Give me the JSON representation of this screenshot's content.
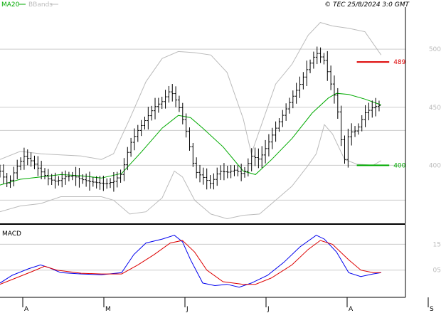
{
  "header": {
    "ma_label": "MA20",
    "bb_label": "BBands",
    "source": "© TEC 25/8/2024 3:0 GMT"
  },
  "colors": {
    "ma": "#00aa00",
    "bands": "#bbbbbb",
    "price": "#000000",
    "macd": "#0000ee",
    "signal": "#dd0000",
    "grid": "#cccccc",
    "resistance": "#dd0000",
    "support": "#00aa00"
  },
  "chart_data": [
    {
      "type": "ohlc",
      "y_ticks": [
        "500",
        "450",
        "400"
      ],
      "y_tick_values": [
        500,
        450,
        400
      ],
      "ylim": [
        350,
        535
      ],
      "x_tick_labels": [
        "A",
        "M",
        "J",
        "J",
        "A",
        "S"
      ],
      "x_tick_positions": [
        0,
        20,
        40,
        60,
        80,
        100
      ],
      "xlim": [
        0,
        100
      ],
      "grid": true,
      "levels": [
        {
          "name": "resistance",
          "label": "489",
          "value": 489,
          "x_start": 88,
          "x_end": 96
        },
        {
          "name": "support",
          "label": "400",
          "value": 400,
          "x_start": 88,
          "x_end": 96
        }
      ],
      "price_close": [
        [
          0,
          395
        ],
        [
          2,
          383
        ],
        [
          4,
          398
        ],
        [
          6,
          408
        ],
        [
          8,
          403
        ],
        [
          10,
          395
        ],
        [
          12,
          388
        ],
        [
          14,
          386
        ],
        [
          16,
          390
        ],
        [
          18,
          391
        ],
        [
          20,
          388
        ],
        [
          22,
          386
        ],
        [
          24,
          385
        ],
        [
          26,
          384
        ],
        [
          28,
          386
        ],
        [
          30,
          393
        ],
        [
          32,
          418
        ],
        [
          34,
          430
        ],
        [
          36,
          440
        ],
        [
          38,
          450
        ],
        [
          40,
          455
        ],
        [
          42,
          465
        ],
        [
          44,
          452
        ],
        [
          46,
          428
        ],
        [
          47,
          412
        ],
        [
          48,
          395
        ],
        [
          50,
          390
        ],
        [
          52,
          384
        ],
        [
          54,
          395
        ],
        [
          56,
          394
        ],
        [
          58,
          396
        ],
        [
          60,
          392
        ],
        [
          62,
          408
        ],
        [
          64,
          405
        ],
        [
          66,
          418
        ],
        [
          68,
          432
        ],
        [
          70,
          445
        ],
        [
          72,
          458
        ],
        [
          74,
          470
        ],
        [
          76,
          485
        ],
        [
          78,
          497
        ],
        [
          80,
          490
        ],
        [
          82,
          465
        ],
        [
          83,
          455
        ],
        [
          84,
          425
        ],
        [
          85,
          405
        ],
        [
          86,
          428
        ],
        [
          88,
          430
        ],
        [
          90,
          445
        ],
        [
          92,
          450
        ],
        [
          94,
          452
        ]
      ],
      "ma20": [
        [
          0,
          383
        ],
        [
          5,
          388
        ],
        [
          10,
          390
        ],
        [
          15,
          392
        ],
        [
          20,
          391
        ],
        [
          25,
          389
        ],
        [
          30,
          393
        ],
        [
          35,
          412
        ],
        [
          40,
          432
        ],
        [
          44,
          443
        ],
        [
          47,
          441
        ],
        [
          50,
          432
        ],
        [
          55,
          416
        ],
        [
          60,
          395
        ],
        [
          63,
          392
        ],
        [
          67,
          405
        ],
        [
          72,
          423
        ],
        [
          77,
          445
        ],
        [
          81,
          458
        ],
        [
          83,
          462
        ],
        [
          86,
          461
        ],
        [
          90,
          457
        ],
        [
          94,
          452
        ]
      ],
      "bb_upper": [
        [
          0,
          405
        ],
        [
          5,
          412
        ],
        [
          10,
          410
        ],
        [
          15,
          409
        ],
        [
          20,
          408
        ],
        [
          25,
          405
        ],
        [
          28,
          410
        ],
        [
          32,
          440
        ],
        [
          36,
          472
        ],
        [
          40,
          492
        ],
        [
          44,
          498
        ],
        [
          48,
          497
        ],
        [
          52,
          495
        ],
        [
          56,
          480
        ],
        [
          60,
          440
        ],
        [
          62,
          410
        ],
        [
          65,
          440
        ],
        [
          68,
          470
        ],
        [
          72,
          487
        ],
        [
          76,
          512
        ],
        [
          79,
          523
        ],
        [
          82,
          520
        ],
        [
          86,
          518
        ],
        [
          90,
          515
        ],
        [
          94,
          495
        ]
      ],
      "bb_lower": [
        [
          0,
          360
        ],
        [
          5,
          365
        ],
        [
          10,
          367
        ],
        [
          15,
          373
        ],
        [
          20,
          373
        ],
        [
          25,
          373
        ],
        [
          28,
          370
        ],
        [
          32,
          358
        ],
        [
          36,
          360
        ],
        [
          40,
          372
        ],
        [
          43,
          395
        ],
        [
          45,
          390
        ],
        [
          48,
          370
        ],
        [
          52,
          358
        ],
        [
          56,
          354
        ],
        [
          60,
          357
        ],
        [
          64,
          358
        ],
        [
          68,
          370
        ],
        [
          72,
          382
        ],
        [
          76,
          400
        ],
        [
          78,
          410
        ],
        [
          80,
          435
        ],
        [
          82,
          427
        ],
        [
          85,
          405
        ],
        [
          88,
          401
        ],
        [
          92,
          400
        ],
        [
          94,
          404
        ]
      ]
    },
    {
      "type": "line",
      "title": "MACD",
      "y_ticks": [
        "15",
        "05"
      ],
      "y_tick_values": [
        15,
        5
      ],
      "ylim": [
        -5,
        22
      ],
      "xlim": [
        0,
        100
      ],
      "series": [
        {
          "values": [
            [
              0,
              0
            ],
            [
              3,
              3
            ],
            [
              7,
              5.5
            ],
            [
              10,
              7
            ],
            [
              12,
              6
            ],
            [
              15,
              4
            ],
            [
              20,
              3.5
            ],
            [
              25,
              3.2
            ],
            [
              30,
              4
            ],
            [
              33,
              11
            ],
            [
              36,
              15.5
            ],
            [
              40,
              17
            ],
            [
              43,
              18.5
            ],
            [
              45,
              16
            ],
            [
              47,
              9
            ],
            [
              50,
              0
            ],
            [
              53,
              -1
            ],
            [
              56,
              -0.5
            ],
            [
              59,
              -1.6
            ],
            [
              62,
              0
            ],
            [
              66,
              3
            ],
            [
              70,
              8
            ],
            [
              74,
              14
            ],
            [
              78,
              18.5
            ],
            [
              80,
              17
            ],
            [
              83,
              12
            ],
            [
              86,
              4
            ],
            [
              89,
              2.5
            ],
            [
              92,
              3.5
            ],
            [
              94,
              4
            ]
          ]
        },
        {
          "values": [
            [
              0,
              -0.5
            ],
            [
              4,
              2
            ],
            [
              8,
              4.5
            ],
            [
              11,
              6.5
            ],
            [
              14,
              5
            ],
            [
              20,
              3.8
            ],
            [
              25,
              3.5
            ],
            [
              30,
              3.5
            ],
            [
              34,
              7
            ],
            [
              38,
              11
            ],
            [
              42,
              15.5
            ],
            [
              45,
              16.5
            ],
            [
              48,
              12
            ],
            [
              51,
              5
            ],
            [
              55,
              0.5
            ],
            [
              60,
              -0.5
            ],
            [
              63,
              -0.5
            ],
            [
              67,
              2
            ],
            [
              72,
              7
            ],
            [
              76,
              13
            ],
            [
              79,
              16.5
            ],
            [
              82,
              15
            ],
            [
              86,
              9
            ],
            [
              89,
              5
            ],
            [
              92,
              4
            ],
            [
              94,
              4
            ]
          ]
        }
      ]
    }
  ]
}
